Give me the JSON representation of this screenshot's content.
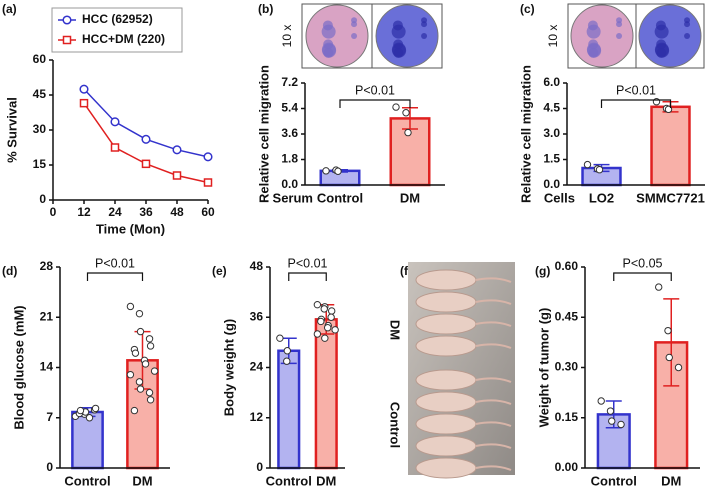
{
  "chart_data": [
    {
      "type": "line",
      "panel_label": "(a)",
      "ylabel": "% Survival",
      "xlabel": "Time (Mon)",
      "x": [
        12,
        24,
        36,
        48,
        60
      ],
      "series": [
        {
          "name": "HCC (62952)",
          "color": "#3333cc",
          "marker": "circle",
          "values": [
            47.5,
            33.5,
            26,
            21.5,
            18.5
          ]
        },
        {
          "name": "HCC+DM (220)",
          "color": "#e02020",
          "marker": "square",
          "values": [
            41.5,
            22.5,
            15.5,
            10.5,
            7.5
          ]
        }
      ],
      "xlim": [
        0,
        60
      ],
      "xticks": [
        0,
        12,
        24,
        36,
        48,
        60
      ],
      "ylim": [
        0,
        60
      ],
      "yticks": [
        0,
        15,
        30,
        45,
        60
      ]
    },
    {
      "type": "bar",
      "panel_label": "(b)",
      "image_label": "10 x",
      "ylabel": "Relative cell migration",
      "xlabel": "Serum",
      "annotation": "P<0.01",
      "categories": [
        "Control",
        "DM"
      ],
      "values": [
        1.0,
        4.7
      ],
      "errors": [
        0.08,
        0.75
      ],
      "points": [
        [
          1.0,
          1.05,
          0.97
        ],
        [
          5.5,
          5.1,
          3.7
        ]
      ],
      "colors": [
        "#b3b3f0",
        "#f8b0a8"
      ],
      "edge_colors": [
        "#3333cc",
        "#e02020"
      ],
      "ylim": [
        0,
        7.2
      ],
      "yticks": [
        {
          "value": 0,
          "label": "0.0"
        },
        1.8,
        3.6,
        5.4,
        7.2
      ]
    },
    {
      "type": "bar",
      "panel_label": "(c)",
      "image_label": "10 x",
      "ylabel": "Relative cell migration",
      "xlabel": "Cells",
      "annotation": "P<0.01",
      "categories": [
        "LO2",
        "SMMC7721"
      ],
      "values": [
        1.0,
        4.6
      ],
      "errors": [
        0.2,
        0.3
      ],
      "points": [
        [
          1.2,
          0.95,
          0.9
        ],
        [
          4.9,
          4.5,
          4.45
        ]
      ],
      "colors": [
        "#b3b3f0",
        "#f8b0a8"
      ],
      "edge_colors": [
        "#3333cc",
        "#e02020"
      ],
      "ylim": [
        0,
        6
      ],
      "yticks": [
        {
          "value": 0,
          "label": "0.0"
        },
        1.5,
        {
          "value": 3,
          "label": "3.0"
        },
        4.5,
        {
          "value": 6,
          "label": "6.0"
        }
      ]
    },
    {
      "type": "bar",
      "panel_label": "(d)",
      "ylabel": "Blood glucose (mM)",
      "annotation": "P<0.01",
      "categories": [
        "Control",
        "DM"
      ],
      "values": [
        7.8,
        15
      ],
      "errors": [
        0.6,
        4
      ],
      "points": [
        [
          7.2,
          7.5,
          7.8,
          8.1,
          8.3,
          7.6,
          8.0,
          7.0
        ],
        [
          22.5,
          21.5,
          19,
          18,
          17,
          16.5,
          16,
          15,
          14.5,
          13.5,
          13,
          12,
          11,
          10.5,
          9.5,
          8
        ]
      ],
      "colors": [
        "#b3b3f0",
        "#f8b0a8"
      ],
      "edge_colors": [
        "#3333cc",
        "#e02020"
      ],
      "ylim": [
        0,
        28
      ],
      "yticks": [
        0,
        7,
        14,
        21,
        28
      ]
    },
    {
      "type": "bar",
      "panel_label": "(e)",
      "ylabel": "Body weight (g)",
      "annotation": "P<0.01",
      "categories": [
        "Control",
        "DM"
      ],
      "values": [
        28,
        35.5
      ],
      "errors": [
        3,
        3.5
      ],
      "points": [
        [
          31,
          28,
          25.5
        ],
        [
          39,
          38.5,
          38,
          37.5,
          36,
          35.5,
          35,
          34,
          33.5,
          33,
          32,
          31
        ]
      ],
      "colors": [
        "#b3b3f0",
        "#f8b0a8"
      ],
      "edge_colors": [
        "#3333cc",
        "#e02020"
      ],
      "ylim": [
        0,
        48
      ],
      "yticks": [
        0,
        12,
        24,
        36,
        48
      ]
    },
    {
      "type": "photo",
      "panel_label": "(f)",
      "labels": [
        "DM",
        "Control"
      ]
    },
    {
      "type": "bar",
      "panel_label": "(g)",
      "ylabel": "Weight of tumor (g)",
      "annotation": "P<0.05",
      "categories": [
        "Control",
        "DM"
      ],
      "values": [
        0.16,
        0.375
      ],
      "errors": [
        0.04,
        0.13
      ],
      "points": [
        [
          0.2,
          0.17,
          0.14,
          0.13
        ],
        [
          0.54,
          0.41,
          0.33,
          0.3
        ]
      ],
      "colors": [
        "#b3b3f0",
        "#f8b0a8"
      ],
      "edge_colors": [
        "#3333cc",
        "#e02020"
      ],
      "ylim": [
        0,
        0.6
      ],
      "yticks": [
        {
          "value": 0,
          "label": "0.00"
        },
        0.15,
        {
          "value": 0.3,
          "label": "0.30"
        },
        0.45,
        {
          "value": 0.6,
          "label": "0.60"
        }
      ]
    }
  ]
}
